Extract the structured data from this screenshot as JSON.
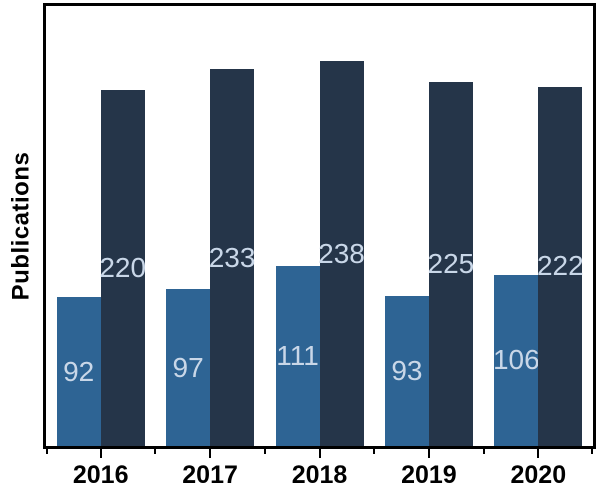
{
  "chart_data": {
    "type": "bar",
    "title": "",
    "xlabel": "",
    "ylabel": "Publications",
    "categories": [
      "2016",
      "2017",
      "2018",
      "2019",
      "2020"
    ],
    "series": [
      {
        "name": "series-1",
        "color": "#2e6494",
        "values": [
          92,
          97,
          111,
          93,
          106
        ]
      },
      {
        "name": "series-2",
        "color": "#253549",
        "values": [
          220,
          233,
          238,
          225,
          222
        ]
      }
    ],
    "ylim": [
      0,
      272
    ],
    "bar_labels": true,
    "bar_label_color": "#c9d7e8",
    "grid": false,
    "legend": "none",
    "frame_color": "#000000",
    "x_tick_style": "major ticks at category centers, minor ticks at category boundaries"
  }
}
